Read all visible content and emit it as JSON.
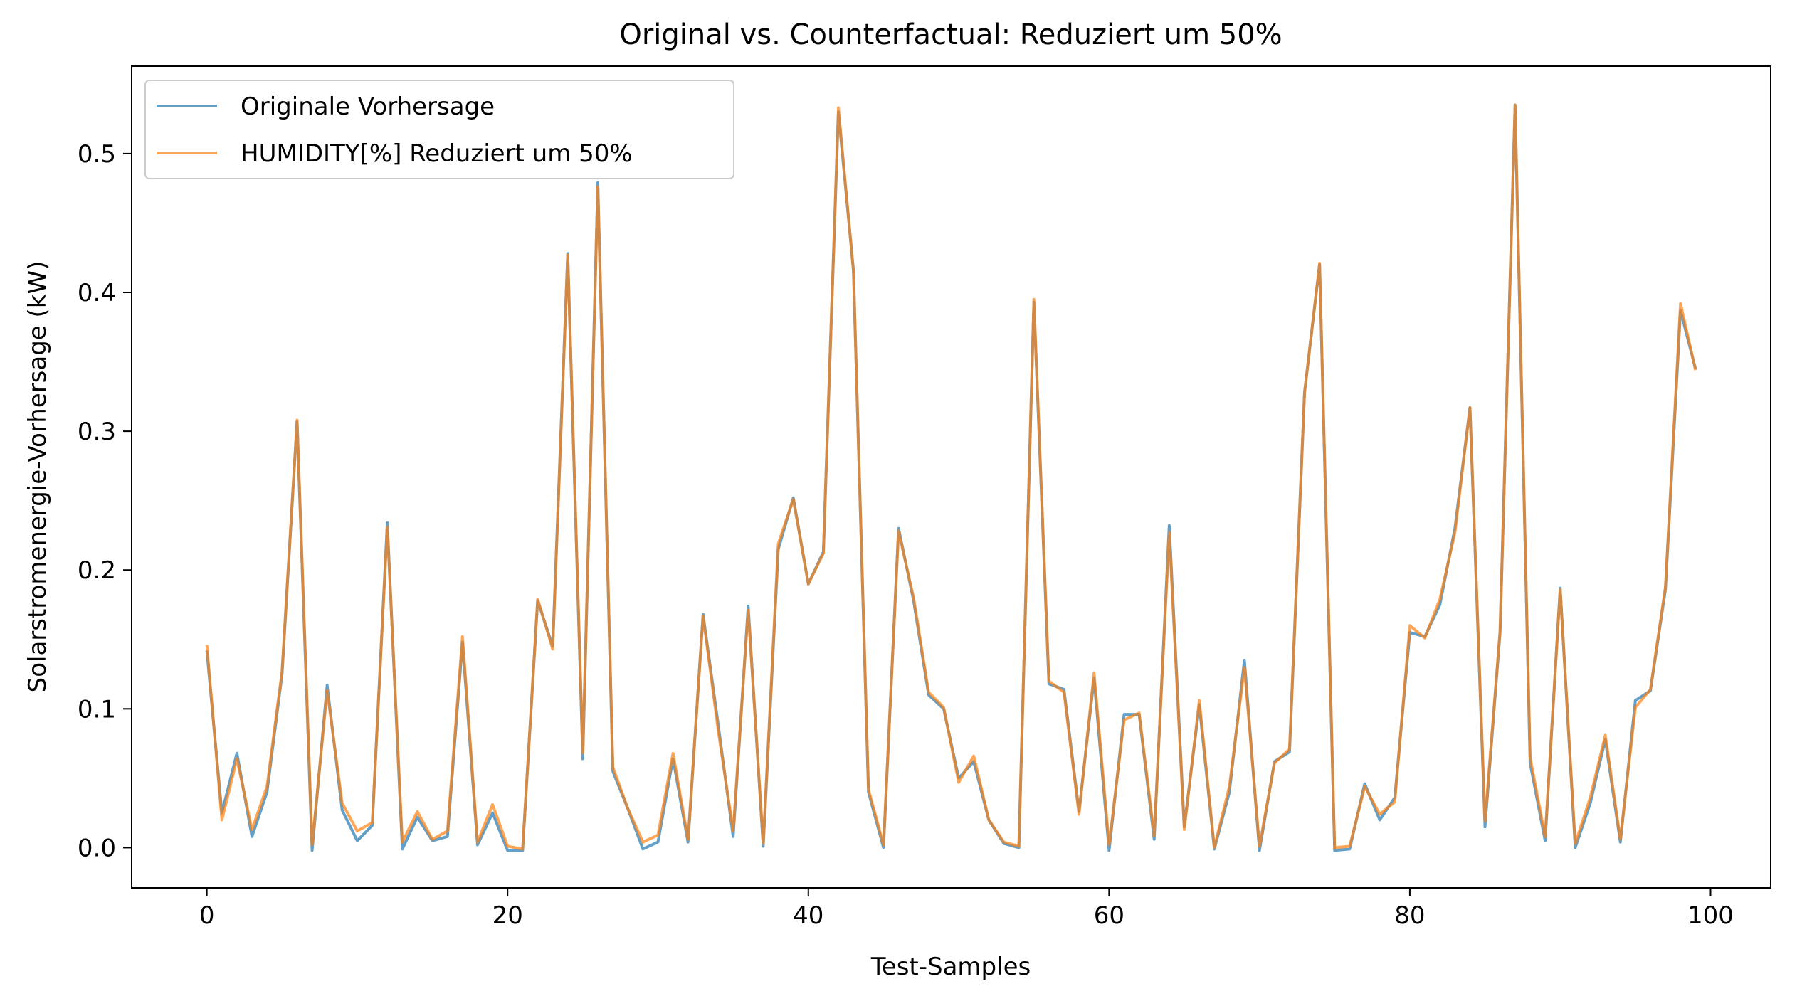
{
  "chart_data": {
    "type": "line",
    "title": "Original vs. Counterfactual: Reduziert um 50%",
    "xlabel": "Test-Samples",
    "ylabel": "Solarstromenergie-Vorhersage (kW)",
    "xlim": [
      -5,
      104
    ],
    "ylim": [
      -0.029,
      0.563
    ],
    "x_ticks": [
      0,
      20,
      40,
      60,
      80,
      100
    ],
    "y_ticks": [
      0.0,
      0.1,
      0.2,
      0.3,
      0.4,
      0.5
    ],
    "x_tick_labels": [
      "0",
      "20",
      "40",
      "60",
      "80",
      "100"
    ],
    "y_tick_labels": [
      "0.0",
      "0.1",
      "0.2",
      "0.3",
      "0.4",
      "0.5"
    ],
    "grid": false,
    "legend_position": "top-left",
    "x": [
      0,
      1,
      2,
      3,
      4,
      5,
      6,
      7,
      8,
      9,
      10,
      11,
      12,
      13,
      14,
      15,
      16,
      17,
      18,
      19,
      20,
      21,
      22,
      23,
      24,
      25,
      26,
      27,
      28,
      29,
      30,
      31,
      32,
      33,
      34,
      35,
      36,
      37,
      38,
      39,
      40,
      41,
      42,
      43,
      44,
      45,
      46,
      47,
      48,
      49,
      50,
      51,
      52,
      53,
      54,
      55,
      56,
      57,
      58,
      59,
      60,
      61,
      62,
      63,
      64,
      65,
      66,
      67,
      68,
      69,
      70,
      71,
      72,
      73,
      74,
      75,
      76,
      77,
      78,
      79,
      80,
      81,
      82,
      83,
      84,
      85,
      86,
      87,
      88,
      89,
      90,
      91,
      92,
      93,
      94,
      95,
      96,
      97,
      98,
      99
    ],
    "series": [
      {
        "name": "Originale Vorhersage",
        "color": "#1f77b4",
        "values": [
          0.142,
          0.025,
          0.068,
          0.008,
          0.04,
          0.125,
          0.307,
          -0.002,
          0.117,
          0.027,
          0.005,
          0.016,
          0.234,
          -0.001,
          0.022,
          0.005,
          0.008,
          0.148,
          0.002,
          0.025,
          -0.002,
          -0.002,
          0.178,
          0.145,
          0.428,
          0.064,
          0.479,
          0.055,
          0.028,
          -0.001,
          0.004,
          0.064,
          0.004,
          0.168,
          0.089,
          0.008,
          0.174,
          0.001,
          0.215,
          0.252,
          0.19,
          0.213,
          0.53,
          0.416,
          0.04,
          0.0,
          0.23,
          0.178,
          0.11,
          0.1,
          0.05,
          0.062,
          0.02,
          0.003,
          0.0,
          0.393,
          0.118,
          0.114,
          0.026,
          0.122,
          -0.002,
          0.096,
          0.096,
          0.006,
          0.232,
          0.015,
          0.103,
          -0.001,
          0.04,
          0.135,
          -0.002,
          0.062,
          0.069,
          0.328,
          0.42,
          -0.002,
          -0.001,
          0.046,
          0.02,
          0.036,
          0.155,
          0.152,
          0.175,
          0.23,
          0.317,
          0.015,
          0.155,
          0.535,
          0.061,
          0.005,
          0.187,
          0.0,
          0.032,
          0.078,
          0.004,
          0.106,
          0.113,
          0.186,
          0.387,
          0.345
        ]
      },
      {
        "name": "HUMIDITY[%] Reduziert um 50%",
        "color": "#ff7f0e",
        "values": [
          0.146,
          0.02,
          0.064,
          0.013,
          0.044,
          0.127,
          0.308,
          0.002,
          0.113,
          0.032,
          0.012,
          0.018,
          0.231,
          0.004,
          0.026,
          0.006,
          0.012,
          0.152,
          0.004,
          0.031,
          0.001,
          -0.001,
          0.179,
          0.143,
          0.427,
          0.068,
          0.476,
          0.058,
          0.028,
          0.004,
          0.009,
          0.068,
          0.006,
          0.167,
          0.085,
          0.012,
          0.171,
          0.003,
          0.219,
          0.251,
          0.19,
          0.212,
          0.533,
          0.415,
          0.042,
          0.002,
          0.228,
          0.18,
          0.112,
          0.101,
          0.047,
          0.066,
          0.02,
          0.004,
          0.001,
          0.395,
          0.12,
          0.112,
          0.024,
          0.126,
          0.002,
          0.092,
          0.097,
          0.009,
          0.227,
          0.013,
          0.106,
          0.0,
          0.044,
          0.13,
          0.001,
          0.061,
          0.071,
          0.328,
          0.421,
          0.0,
          0.001,
          0.044,
          0.024,
          0.033,
          0.16,
          0.151,
          0.179,
          0.227,
          0.317,
          0.019,
          0.156,
          0.535,
          0.065,
          0.008,
          0.186,
          0.003,
          0.036,
          0.081,
          0.006,
          0.101,
          0.114,
          0.188,
          0.392,
          0.344
        ]
      }
    ]
  }
}
